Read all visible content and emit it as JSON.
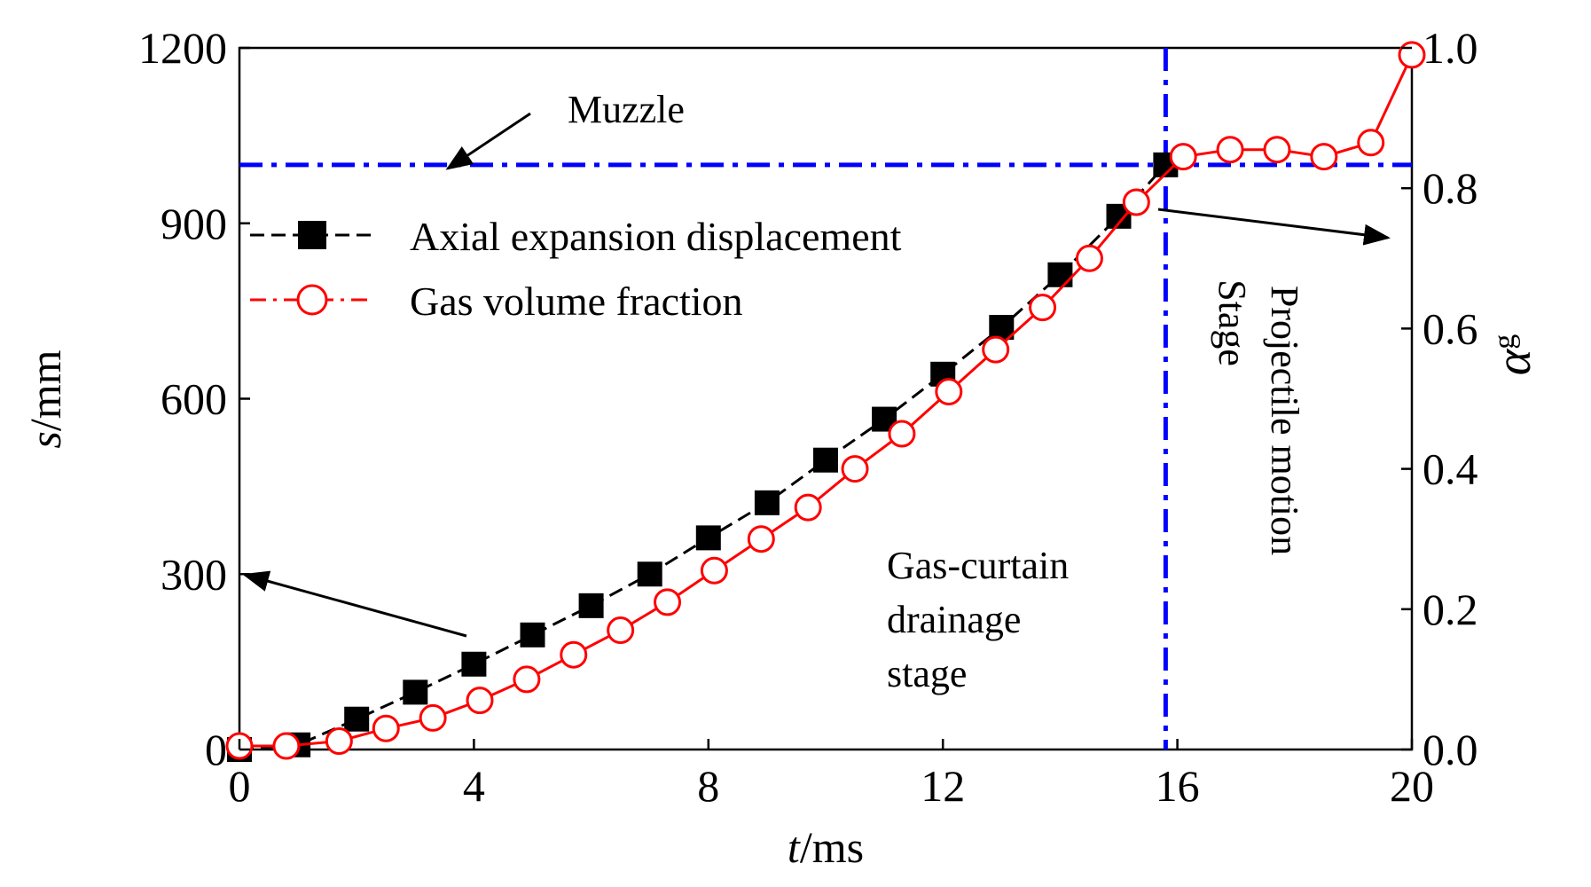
{
  "chart_data": {
    "type": "line",
    "xlabel": {
      "italic": "t",
      "unit": "/ms"
    },
    "ylabel_left": {
      "italic": "s",
      "unit": "/mm"
    },
    "ylabel_right": {
      "symbol": "α",
      "subscript": "g"
    },
    "xlim": [
      0,
      20
    ],
    "ylim_left": [
      0,
      1200
    ],
    "ylim_right": [
      0,
      1.0
    ],
    "x_ticks": [
      0,
      4,
      8,
      12,
      16,
      20
    ],
    "x_tick_labels": [
      "0",
      "4",
      "8",
      "12",
      "16",
      "20"
    ],
    "y_left_ticks": [
      0,
      300,
      600,
      900,
      1200
    ],
    "y_left_tick_labels": [
      "0",
      "300",
      "600",
      "900",
      "1200"
    ],
    "y_right_ticks": [
      0,
      0.2,
      0.4,
      0.6,
      0.8,
      1.0
    ],
    "y_right_tick_labels": [
      "0.0",
      "0.2",
      "0.4",
      "0.6",
      "0.8",
      "1.0"
    ],
    "grid": false,
    "legend_position": "upper-left",
    "series": [
      {
        "name": "Axial expansion displacement",
        "axis": "left",
        "color": "#000000",
        "line_style": "dashed",
        "marker": "filled-square",
        "x": [
          0,
          1,
          2,
          3,
          4,
          5,
          6,
          7,
          8,
          9,
          10,
          11,
          12,
          13,
          14,
          15,
          15.8
        ],
        "y": [
          0,
          8,
          52,
          98,
          146,
          196,
          246,
          300,
          362,
          422,
          495,
          565,
          642,
          722,
          812,
          912,
          1000
        ]
      },
      {
        "name": "Gas volume fraction",
        "axis": "right",
        "color": "#ff0000",
        "line_style": "solid",
        "marker": "open-circle",
        "x": [
          0,
          0.8,
          1.7,
          2.5,
          3.3,
          4.1,
          4.9,
          5.7,
          6.5,
          7.3,
          8.1,
          8.9,
          9.7,
          10.5,
          11.3,
          12.1,
          12.9,
          13.7,
          14.5,
          15.3,
          16.1,
          16.9,
          17.7,
          18.5,
          19.3,
          20
        ],
        "y": [
          0.005,
          0.005,
          0.012,
          0.03,
          0.045,
          0.07,
          0.1,
          0.135,
          0.17,
          0.21,
          0.255,
          0.3,
          0.345,
          0.4,
          0.45,
          0.51,
          0.57,
          0.63,
          0.7,
          0.78,
          0.845,
          0.855,
          0.855,
          0.845,
          0.865,
          0.99
        ]
      }
    ],
    "reference_lines": [
      {
        "orientation": "horizontal",
        "axis": "left",
        "value": 1000,
        "color": "#0000ff",
        "style": "dash-dot"
      },
      {
        "orientation": "vertical",
        "value": 15.8,
        "color": "#0000ff",
        "style": "dash-dot"
      }
    ],
    "annotations": {
      "muzzle": "Muzzle",
      "gas_curtain": [
        "Gas-curtain",
        "drainage",
        "stage"
      ],
      "projectile": [
        "Projectile motion",
        "Stage"
      ]
    }
  },
  "colors": {
    "black_series": "#000000",
    "red_series": "#ff0000",
    "reference": "#0000ff"
  }
}
